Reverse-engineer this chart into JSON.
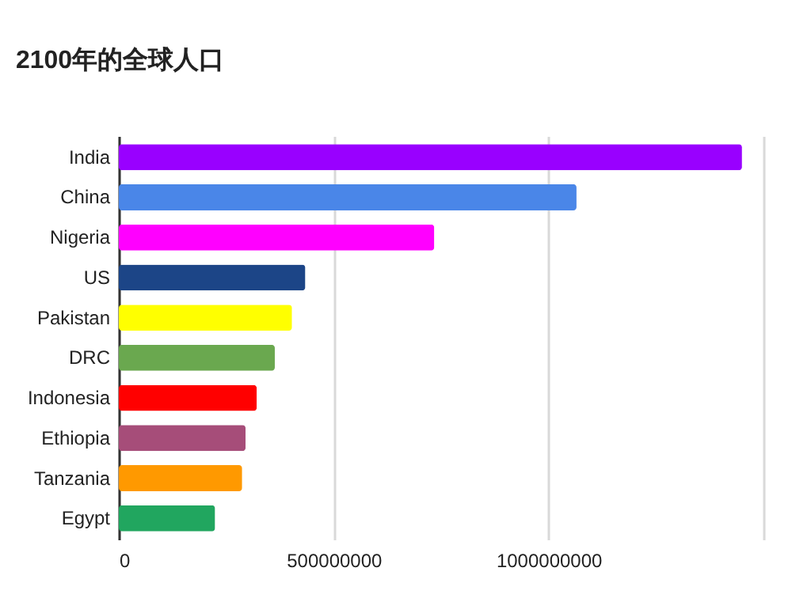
{
  "chart_data": {
    "type": "bar",
    "orientation": "horizontal",
    "title": "2100年的全球人口",
    "categories": [
      "India",
      "China",
      "Nigeria",
      "US",
      "Pakistan",
      "DRC",
      "Indonesia",
      "Ethiopia",
      "Tanzania",
      "Egypt"
    ],
    "values": [
      1450000000,
      1065000000,
      734000000,
      434000000,
      403000000,
      363000000,
      321000000,
      295000000,
      287000000,
      224000000
    ],
    "colors": [
      "#9900ff",
      "#4a86e8",
      "#ff00ff",
      "#1c4587",
      "#ffff00",
      "#6aa84f",
      "#ff0000",
      "#a64d79",
      "#ff9900",
      "#21a65f"
    ],
    "xlim": [
      0,
      1500000000
    ],
    "xticks": [
      0,
      500000000,
      1000000000,
      {
        "value": 1500000000,
        "label": null
      }
    ],
    "grid": "x"
  }
}
